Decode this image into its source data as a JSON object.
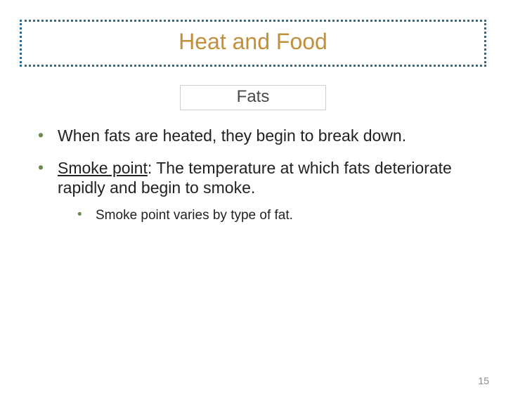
{
  "title": {
    "text": "Heat and Food",
    "color": "#c28f3a",
    "border_color": "#2f6b8f",
    "fontsize": 32
  },
  "subtitle": {
    "text": "Fats",
    "color": "#4a4a4a",
    "border_color": "#cfcfcf",
    "fontsize": 24
  },
  "bullets": {
    "text_color": "#222222",
    "dot_color": "#6b8a4f",
    "l1_fontsize": 23,
    "l2_fontsize": 19,
    "items": [
      {
        "text": "When fats are heated, they begin to break down."
      },
      {
        "term": "Smoke point",
        "rest": ": The temperature at which fats deteriorate rapidly and begin to smoke.",
        "sub": [
          {
            "text": "Smoke point varies by type of fat."
          }
        ]
      }
    ]
  },
  "page_number": {
    "value": "15",
    "color": "#8a8a8a",
    "fontsize": 14
  }
}
